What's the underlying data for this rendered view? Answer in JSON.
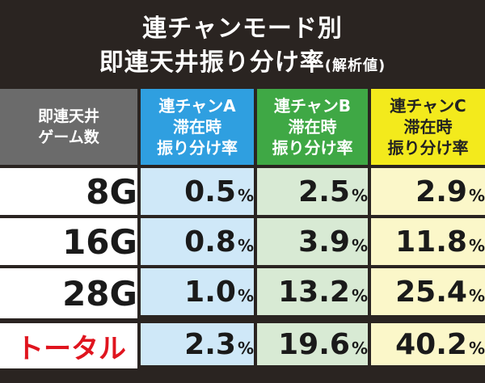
{
  "title": {
    "line1": "連チャンモード別",
    "line2": "即連天井振り分け率",
    "line2_sub": "(解析値)"
  },
  "table": {
    "headers": [
      {
        "line1": "即連天井",
        "line2": "ゲーム数",
        "line3": ""
      },
      {
        "line1": "連チャンA",
        "line2": "滞在時",
        "line3": "振り分け率"
      },
      {
        "line1": "連チャンB",
        "line2": "滞在時",
        "line3": "振り分け率"
      },
      {
        "line1": "連チャンC",
        "line2": "滞在時",
        "line3": "振り分け率"
      }
    ],
    "rows": [
      {
        "label": "8G",
        "a": "0.5",
        "b": "2.5",
        "c": "2.9"
      },
      {
        "label": "16G",
        "a": "0.8",
        "b": "3.9",
        "c": "11.8"
      },
      {
        "label": "28G",
        "a": "1.0",
        "b": "13.2",
        "c": "25.4"
      }
    ],
    "total": {
      "label": "トータル",
      "a": "2.3",
      "b": "19.6",
      "c": "40.2"
    },
    "unit": "%"
  },
  "colors": {
    "background": "#2a2421",
    "header_gray": "#6b6b6b",
    "header_a": "#2f9fe0",
    "header_b": "#3fa845",
    "header_c": "#f3ea1c",
    "total_label": "#e0141e"
  }
}
